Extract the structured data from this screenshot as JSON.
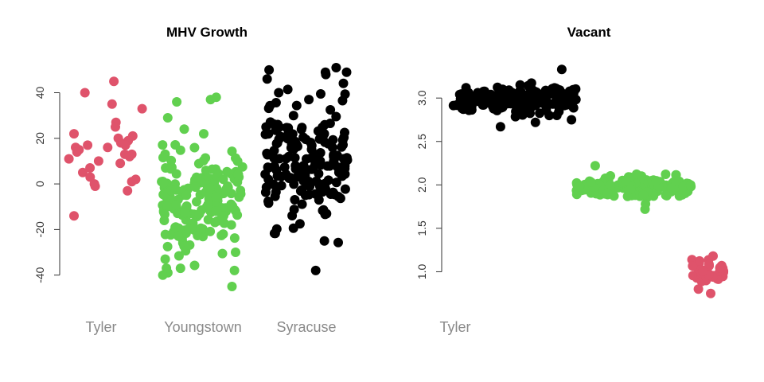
{
  "colors": {
    "Tyler": "#df536b",
    "Youngstown": "#61d04f",
    "Syracuse": "#000000"
  },
  "chart_data": [
    {
      "type": "scatter",
      "title": "MHV Growth",
      "xlabel": "",
      "ylabel": "",
      "categories": [
        "Tyler",
        "Youngstown",
        "Syracuse"
      ],
      "yticks": [
        -40,
        -20,
        0,
        20,
        40
      ],
      "ylim": [
        -45,
        51
      ],
      "grid": false,
      "series": [
        {
          "name": "Tyler",
          "color": "#df536b",
          "x_center": 1,
          "jitter": 0.32,
          "y": [
            45,
            40,
            35,
            33,
            27,
            25,
            22,
            21,
            20,
            19,
            18,
            17,
            17,
            16,
            16,
            15,
            14,
            13,
            13,
            12,
            11,
            10,
            9,
            7,
            5,
            3,
            2,
            1,
            0,
            -1,
            -3,
            -14
          ]
        },
        {
          "name": "Youngstown",
          "color": "#61d04f",
          "x_center": 2,
          "jitter": 0.32,
          "dense": true,
          "anchors": [
            38,
            37,
            36,
            29,
            24,
            22,
            -39,
            -38,
            -37,
            -45,
            -40,
            -33,
            -30
          ]
        },
        {
          "name": "Syracuse",
          "color": "#000000",
          "x_center": 3,
          "jitter": 0.32,
          "dense": true,
          "anchors": [
            51,
            50,
            49,
            48,
            46,
            8,
            2,
            -5,
            -25,
            -38,
            40,
            37,
            30
          ]
        }
      ]
    },
    {
      "type": "scatter",
      "title": "Vacant",
      "xlabel": "",
      "ylabel": "",
      "categories": [
        "Tyler"
      ],
      "yticks": [
        "1.0",
        "1.5",
        "2.0",
        "2.5",
        "3.0"
      ],
      "ylim": [
        0.72,
        3.35
      ],
      "grid": false,
      "series": [
        {
          "name": "Syracuse",
          "color": "#000000",
          "x_range": [
            0.6,
            1.65
          ],
          "y_center": 2.97,
          "y_spread": 0.12,
          "outliers": [
            3.33,
            2.75,
            2.72,
            2.67
          ]
        },
        {
          "name": "Youngstown",
          "color": "#61d04f",
          "x_range": [
            1.65,
            2.62
          ],
          "y_center": 1.98,
          "y_spread": 0.09,
          "outliers": [
            2.22,
            1.72,
            1.78
          ]
        },
        {
          "name": "Tyler",
          "color": "#df536b",
          "x_range": [
            2.62,
            2.9
          ],
          "y_center": 1.0,
          "y_spread": 0.08,
          "outliers": [
            0.75,
            0.8,
            1.18
          ]
        }
      ]
    }
  ]
}
